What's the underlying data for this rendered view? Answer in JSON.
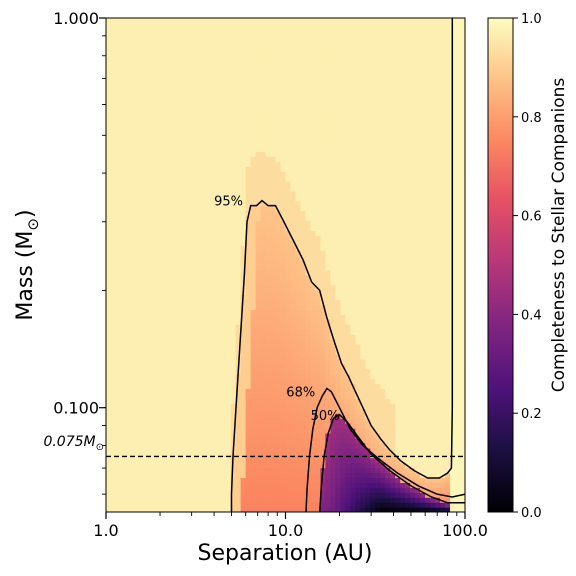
{
  "chart_data": {
    "type": "heatmap",
    "title": "",
    "xlabel": "Separation (AU)",
    "ylabel": "Mass (M",
    "ylabel_sub": "⊙",
    "ylabel_close": ")",
    "xscale": "log",
    "yscale": "log",
    "xlim": [
      1.0,
      100.0
    ],
    "ylim": [
      0.054,
      1.0
    ],
    "x_ticks": [
      {
        "value": 1.0,
        "label": "1.0"
      },
      {
        "value": 10.0,
        "label": "10.0"
      },
      {
        "value": 100.0,
        "label": "100.0"
      }
    ],
    "y_ticks": [
      {
        "value": 1.0,
        "label": "1.000"
      },
      {
        "value": 0.1,
        "label": "0.100"
      }
    ],
    "hline": {
      "value": 0.075,
      "label": "0.075M",
      "label_sub": "⊙",
      "style": "dashed"
    },
    "colormap": "magma",
    "colorbar": {
      "label": "Completeness to Stellar Companions",
      "min": 0.0,
      "max": 1.0,
      "ticks": [
        "0.0",
        "0.2",
        "0.4",
        "0.6",
        "0.8",
        "1.0"
      ]
    },
    "contours": [
      {
        "level_label": "95%",
        "label_at": [
          4.0,
          0.33
        ],
        "points": [
          [
            5.0,
            0.054
          ],
          [
            5.0,
            0.06
          ],
          [
            5.1,
            0.075
          ],
          [
            5.3,
            0.1
          ],
          [
            5.6,
            0.15
          ],
          [
            5.9,
            0.22
          ],
          [
            6.1,
            0.3
          ],
          [
            6.4,
            0.33
          ],
          [
            6.9,
            0.33
          ],
          [
            7.4,
            0.34
          ],
          [
            8.0,
            0.33
          ],
          [
            8.8,
            0.33
          ],
          [
            9.8,
            0.3
          ],
          [
            11.0,
            0.27
          ],
          [
            12.5,
            0.24
          ],
          [
            14.0,
            0.21
          ],
          [
            15.5,
            0.2
          ],
          [
            17.0,
            0.17
          ],
          [
            18.5,
            0.15
          ],
          [
            20.5,
            0.13
          ],
          [
            22.5,
            0.12
          ],
          [
            24.5,
            0.11
          ],
          [
            27.0,
            0.1
          ],
          [
            30.0,
            0.09
          ],
          [
            34.0,
            0.083
          ],
          [
            38.0,
            0.078
          ],
          [
            44.0,
            0.073
          ],
          [
            52.0,
            0.069
          ],
          [
            62.0,
            0.066
          ],
          [
            72.0,
            0.066
          ],
          [
            80.0,
            0.068
          ],
          [
            84.0,
            0.07
          ],
          [
            85.0,
            0.1
          ],
          [
            85.0,
            0.3
          ],
          [
            85.0,
            1.0
          ]
        ]
      },
      {
        "level_label": "68%",
        "label_at": [
          10.1,
          0.107
        ],
        "points": [
          [
            13.0,
            0.054
          ],
          [
            13.2,
            0.062
          ],
          [
            13.6,
            0.075
          ],
          [
            14.2,
            0.088
          ],
          [
            15.0,
            0.1
          ],
          [
            16.0,
            0.107
          ],
          [
            17.0,
            0.112
          ],
          [
            18.0,
            0.11
          ],
          [
            20.0,
            0.1
          ],
          [
            23.0,
            0.088
          ],
          [
            27.0,
            0.08
          ],
          [
            33.0,
            0.074
          ],
          [
            42.0,
            0.068
          ],
          [
            55.0,
            0.063
          ],
          [
            70.0,
            0.06
          ],
          [
            85.0,
            0.059
          ],
          [
            100.0,
            0.06
          ]
        ]
      },
      {
        "level_label": "50%",
        "label_at": [
          13.8,
          0.093
        ],
        "points": [
          [
            15.5,
            0.054
          ],
          [
            15.8,
            0.062
          ],
          [
            16.4,
            0.075
          ],
          [
            17.3,
            0.086
          ],
          [
            18.5,
            0.094
          ],
          [
            20.0,
            0.096
          ],
          [
            22.0,
            0.092
          ],
          [
            25.0,
            0.085
          ],
          [
            30.0,
            0.076
          ],
          [
            38.0,
            0.069
          ],
          [
            50.0,
            0.063
          ],
          [
            65.0,
            0.059
          ],
          [
            80.0,
            0.057
          ],
          [
            100.0,
            0.057
          ]
        ]
      }
    ]
  }
}
